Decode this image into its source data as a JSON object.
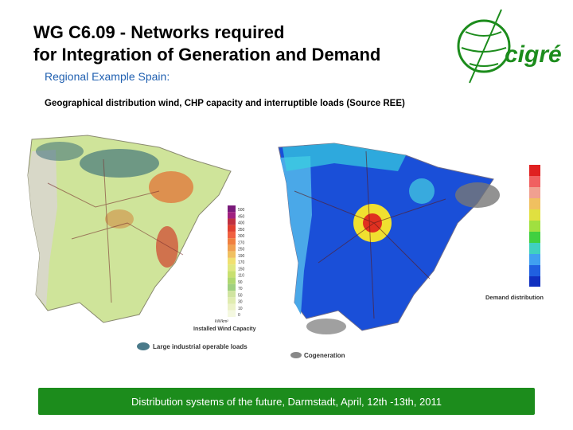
{
  "header": {
    "title_line1": "WG C6.09 - Networks required",
    "title_line2": "for Integration of Generation and Demand",
    "logo": "cigré"
  },
  "section": {
    "heading": "Regional Example Spain:",
    "description": "Geographical distribution wind, CHP capacity and interruptible loads (Source REE)"
  },
  "left_map": {
    "legend_values": [
      "500",
      "450",
      "400",
      "350",
      "300",
      "270",
      "250",
      "190",
      "170",
      "150",
      "110",
      "90",
      "70",
      "50",
      "30",
      "10",
      "0"
    ],
    "legend_unit": "kW/km²",
    "legend_title": "Installed Wind Capacity",
    "loads_label": "Large industrial operable loads"
  },
  "right_map": {
    "cogeneration_label": "Cogeneration",
    "demand_label": "Demand distribution"
  },
  "footer": {
    "text": "Distribution systems of the future, Darmstadt, April, 12th -13th, 2011"
  }
}
